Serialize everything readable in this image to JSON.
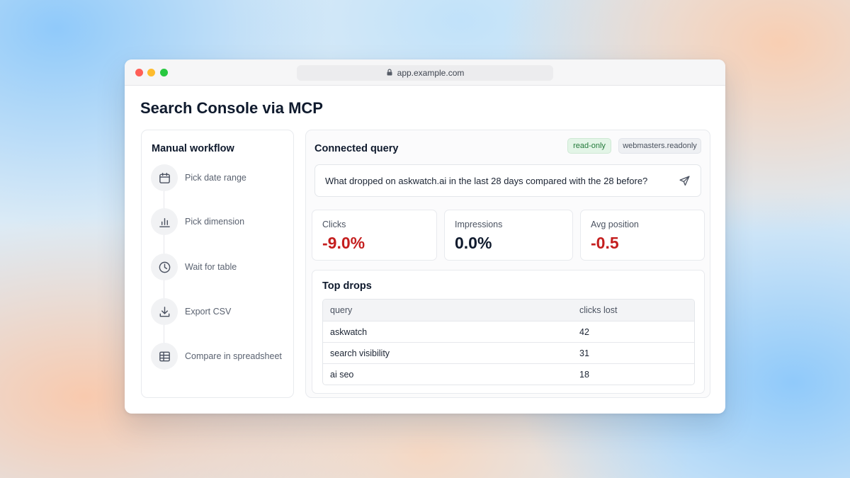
{
  "browser": {
    "url": "app.example.com"
  },
  "page": {
    "title": "Search Console via MCP"
  },
  "workflow": {
    "title": "Manual workflow",
    "steps": [
      {
        "label": "Pick date range",
        "icon": "calendar-icon"
      },
      {
        "label": "Pick dimension",
        "icon": "bar-chart-icon"
      },
      {
        "label": "Wait for table",
        "icon": "clock-icon"
      },
      {
        "label": "Export CSV",
        "icon": "download-icon"
      },
      {
        "label": "Compare in spreadsheet",
        "icon": "table-icon"
      }
    ]
  },
  "query": {
    "title": "Connected query",
    "badges": {
      "access": "read-only",
      "scope": "webmasters.readonly"
    },
    "prompt": "What dropped on askwatch.ai in the last 28 days compared with the 28 before?"
  },
  "metrics": [
    {
      "label": "Clicks",
      "value": "-9.0%",
      "color": "#c41e1e"
    },
    {
      "label": "Impressions",
      "value": "0.0%",
      "color": "#0f1a2d"
    },
    {
      "label": "Avg position",
      "value": "-0.5",
      "color": "#c41e1e"
    }
  ],
  "top_drops": {
    "title": "Top drops",
    "columns": [
      "query",
      "clicks lost"
    ],
    "rows": [
      [
        "askwatch",
        "42"
      ],
      [
        "search visibility",
        "31"
      ],
      [
        "ai seo",
        "18"
      ]
    ]
  },
  "colors": {
    "negative": "#c41e1e",
    "badge_green": "#237a3a"
  }
}
